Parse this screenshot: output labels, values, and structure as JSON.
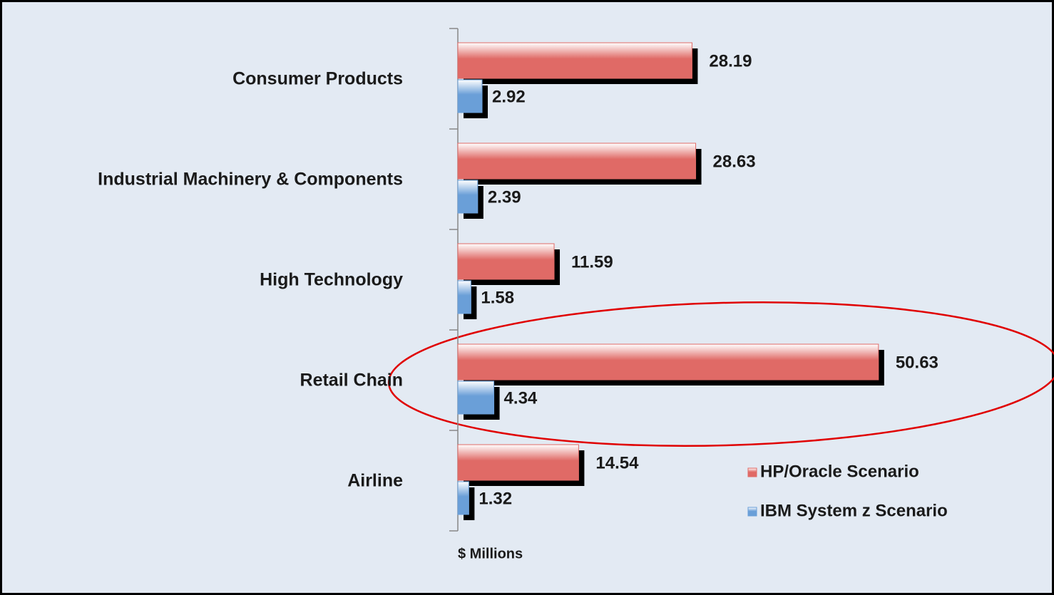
{
  "chart_data": {
    "type": "bar",
    "orientation": "horizontal",
    "categories": [
      "Consumer Products",
      "Industrial Machinery & Components",
      "High Technology",
      "Retail Chain",
      "Airline"
    ],
    "series": [
      {
        "name": "HP/Oracle Scenario",
        "color": "#e06a66",
        "values": [
          28.19,
          28.63,
          11.59,
          50.63,
          14.54
        ]
      },
      {
        "name": "IBM System z Scenario",
        "color": "#6a9fd8",
        "values": [
          2.92,
          2.39,
          1.58,
          4.34,
          1.32
        ]
      }
    ],
    "xlabel": "$ Millions",
    "xlim": [
      0,
      70
    ],
    "legend": "lower right"
  }
}
